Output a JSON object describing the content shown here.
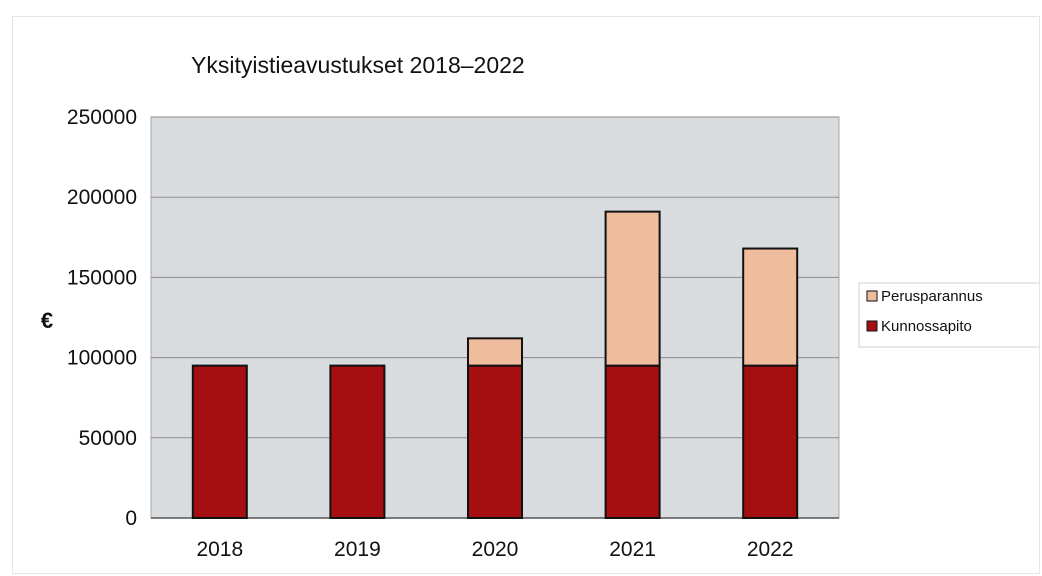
{
  "chart_data": {
    "type": "bar",
    "stacked": true,
    "title": "Yksityistieavustukset 2018–2022",
    "xlabel": "",
    "ylabel": "€",
    "categories": [
      "2018",
      "2019",
      "2020",
      "2021",
      "2022"
    ],
    "ylim": [
      0,
      250000
    ],
    "yticks": [
      0,
      50000,
      100000,
      150000,
      200000,
      250000
    ],
    "grid": true,
    "legend_position": "right",
    "series": [
      {
        "name": "Kunnossapito",
        "values": [
          95000,
          95000,
          95000,
          95000,
          95000
        ],
        "color": "#a50f12"
      },
      {
        "name": "Perusparannus",
        "values": [
          0,
          0,
          17000,
          96000,
          73000
        ],
        "color": "#f0bc9e"
      }
    ],
    "plot_background": "#d9dcdf"
  }
}
